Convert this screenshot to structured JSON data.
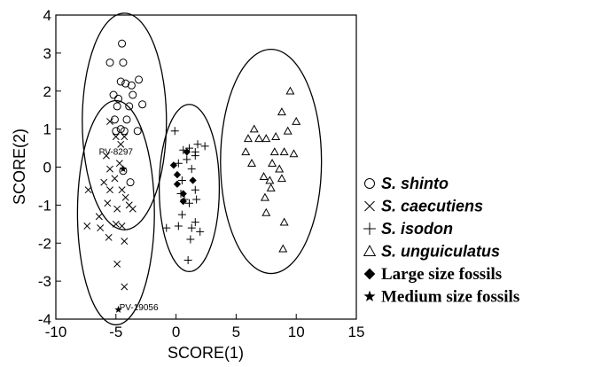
{
  "chart_data": {
    "type": "scatter",
    "xlabel": "SCORE(1)",
    "ylabel": "SCORE(2)",
    "xlim": [
      -10,
      15
    ],
    "ylim": [
      -4,
      4
    ],
    "xticks": [
      "-10",
      "-5",
      "0",
      "5",
      "10",
      "15"
    ],
    "yticks": [
      "-4",
      "-3",
      "-2",
      "-1",
      "0",
      "1",
      "2",
      "3",
      "4"
    ],
    "grid": false,
    "legend_position": "right",
    "series": [
      {
        "name": "S. shinto",
        "marker": "circle",
        "points": [
          [
            -4.5,
            3.25
          ],
          [
            -5.5,
            2.75
          ],
          [
            -4.4,
            2.75
          ],
          [
            -4.6,
            2.25
          ],
          [
            -4.2,
            2.2
          ],
          [
            -3.7,
            2.15
          ],
          [
            -3.1,
            2.3
          ],
          [
            -4.8,
            1.8
          ],
          [
            -5.2,
            1.9
          ],
          [
            -3.6,
            1.9
          ],
          [
            -3.9,
            1.6
          ],
          [
            -2.8,
            1.65
          ],
          [
            -4.9,
            1.6
          ],
          [
            -5.1,
            1.25
          ],
          [
            -4.1,
            1.25
          ],
          [
            -4.6,
            1.0
          ],
          [
            -4.3,
            0.95
          ],
          [
            -5.0,
            0.95
          ],
          [
            -3.2,
            0.95
          ],
          [
            -4.4,
            -0.1
          ],
          [
            -3.8,
            -0.4
          ]
        ]
      },
      {
        "name": "S. caecutiens",
        "marker": "x",
        "points": [
          [
            -5.5,
            1.2
          ],
          [
            -5.0,
            0.8
          ],
          [
            -4.3,
            0.8
          ],
          [
            -4.6,
            0.6
          ],
          [
            -5.8,
            0.3
          ],
          [
            -5.5,
            -0.05
          ],
          [
            -4.7,
            0.1
          ],
          [
            -5.1,
            -0.3
          ],
          [
            -6.0,
            -0.4
          ],
          [
            -7.3,
            -0.6
          ],
          [
            -5.5,
            -0.6
          ],
          [
            -4.5,
            -0.6
          ],
          [
            -4.2,
            -0.8
          ],
          [
            -3.9,
            -1.0
          ],
          [
            -5.7,
            -0.95
          ],
          [
            -4.9,
            -1.1
          ],
          [
            -3.6,
            -1.1
          ],
          [
            -6.4,
            -1.3
          ],
          [
            -7.4,
            -1.55
          ],
          [
            -5.0,
            -1.5
          ],
          [
            -4.5,
            -1.55
          ],
          [
            -6.3,
            -1.6
          ],
          [
            -5.6,
            -1.85
          ],
          [
            -4.3,
            -1.95
          ],
          [
            -4.9,
            -2.55
          ],
          [
            -4.3,
            -3.15
          ]
        ]
      },
      {
        "name": "S. isodon",
        "marker": "plus",
        "points": [
          [
            -0.1,
            0.95
          ],
          [
            1.8,
            0.6
          ],
          [
            1.1,
            0.5
          ],
          [
            1.6,
            0.4
          ],
          [
            2.4,
            0.55
          ],
          [
            0.6,
            0.45
          ],
          [
            0.9,
            0.2
          ],
          [
            0.2,
            0.1
          ],
          [
            1.6,
            0.3
          ],
          [
            1.3,
            -0.05
          ],
          [
            0.5,
            -0.35
          ],
          [
            1.6,
            -0.6
          ],
          [
            0.4,
            -0.7
          ],
          [
            1.7,
            -0.85
          ],
          [
            0.7,
            -0.85
          ],
          [
            1.1,
            -0.95
          ],
          [
            0.5,
            -1.25
          ],
          [
            0.2,
            -1.55
          ],
          [
            1.6,
            -1.45
          ],
          [
            1.3,
            -1.6
          ],
          [
            -0.8,
            -1.6
          ],
          [
            2.0,
            -1.7
          ],
          [
            1.2,
            -1.9
          ],
          [
            1.0,
            -2.45
          ]
        ]
      },
      {
        "name": "S. unguiculatus",
        "marker": "triangle",
        "points": [
          [
            9.5,
            2.0
          ],
          [
            8.8,
            1.45
          ],
          [
            10.0,
            1.2
          ],
          [
            9.3,
            0.95
          ],
          [
            6.5,
            1.0
          ],
          [
            6.0,
            0.75
          ],
          [
            6.9,
            0.75
          ],
          [
            7.5,
            0.75
          ],
          [
            8.3,
            0.8
          ],
          [
            5.8,
            0.4
          ],
          [
            6.3,
            0.1
          ],
          [
            8.2,
            0.4
          ],
          [
            9.0,
            0.4
          ],
          [
            9.8,
            0.35
          ],
          [
            8.0,
            0.1
          ],
          [
            8.6,
            -0.05
          ],
          [
            7.3,
            -0.25
          ],
          [
            8.8,
            -0.3
          ],
          [
            7.8,
            -0.35
          ],
          [
            7.9,
            -0.55
          ],
          [
            7.4,
            -0.8
          ],
          [
            7.5,
            -1.2
          ],
          [
            9.0,
            -1.45
          ],
          [
            8.9,
            -2.15
          ]
        ]
      },
      {
        "name": "Large size fossils",
        "marker": "diamond",
        "points": [
          [
            0.9,
            0.4
          ],
          [
            -0.2,
            0.05
          ],
          [
            0.1,
            -0.2
          ],
          [
            0.1,
            -0.45
          ],
          [
            1.4,
            -0.35
          ],
          [
            0.6,
            -0.7
          ],
          [
            0.6,
            -0.9
          ]
        ]
      },
      {
        "name": "Medium size fossils",
        "marker": "star",
        "points": [
          [
            -4.4,
            -0.05
          ],
          [
            -4.8,
            -3.75
          ]
        ]
      }
    ],
    "ellipses": [
      {
        "cx": -4.3,
        "cy": 1.2,
        "rx": 3.5,
        "ry": 2.85
      },
      {
        "cx": -5.0,
        "cy": -1.2,
        "rx": 3.2,
        "ry": 2.95
      },
      {
        "cx": 1.1,
        "cy": -0.55,
        "rx": 2.5,
        "ry": 2.2
      },
      {
        "cx": 7.9,
        "cy": 0.15,
        "rx": 4.2,
        "ry": 2.95
      }
    ],
    "annotations": [
      {
        "text": "PV-8297",
        "x": -5.0,
        "y": 0.4
      },
      {
        "text": "PV-19056",
        "x": -3.1,
        "y": -3.7
      }
    ]
  },
  "legend": {
    "items": [
      {
        "label": "S. shinto",
        "marker": "circle",
        "style": "species"
      },
      {
        "label": "S. caecutiens",
        "marker": "x",
        "style": "species"
      },
      {
        "label": "S. isodon",
        "marker": "plus",
        "style": "species"
      },
      {
        "label": "S. unguiculatus",
        "marker": "triangle",
        "style": "species"
      },
      {
        "label": "Large size fossils",
        "marker": "diamond",
        "style": "fossil"
      },
      {
        "label": "Medium size fossils",
        "marker": "star",
        "style": "fossil"
      }
    ]
  }
}
